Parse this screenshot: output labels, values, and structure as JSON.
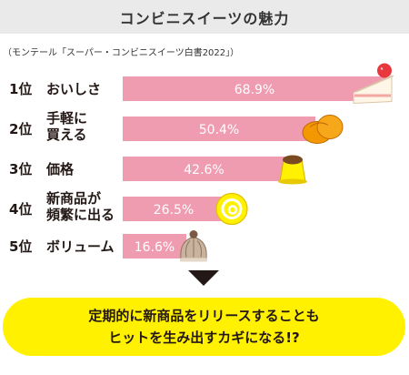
{
  "header": {
    "title": "コンビニスイーツの魅力"
  },
  "source_note": "（モンテール「スーパー・コンビニスイーツ白書2022」）",
  "chart_data": {
    "type": "bar",
    "orientation": "horizontal",
    "ranks": [
      "1位",
      "2位",
      "3位",
      "4位",
      "5位"
    ],
    "categories": [
      [
        "おいしさ"
      ],
      [
        "手軽に",
        "買える"
      ],
      [
        "価格"
      ],
      [
        "新商品が",
        "頻繁に出る"
      ],
      [
        "ボリューム"
      ]
    ],
    "values": [
      68.9,
      50.4,
      42.6,
      26.5,
      16.6
    ],
    "value_labels": [
      "68.9%",
      "50.4%",
      "42.6%",
      "26.5%",
      "16.6%"
    ],
    "icons": [
      "shortcake-icon",
      "cream-puff-icon",
      "pudding-icon",
      "swiss-roll-icon",
      "mont-blanc-icon"
    ],
    "xlim": [
      0,
      68.9
    ],
    "grid": false,
    "colors": {
      "bar": "#f09cb0",
      "label": "#ffffff",
      "text": "#231815"
    }
  },
  "callout": {
    "lines": [
      "定期的に新商品をリリースすることも",
      "ヒットを生み出すカギになる!?"
    ]
  }
}
